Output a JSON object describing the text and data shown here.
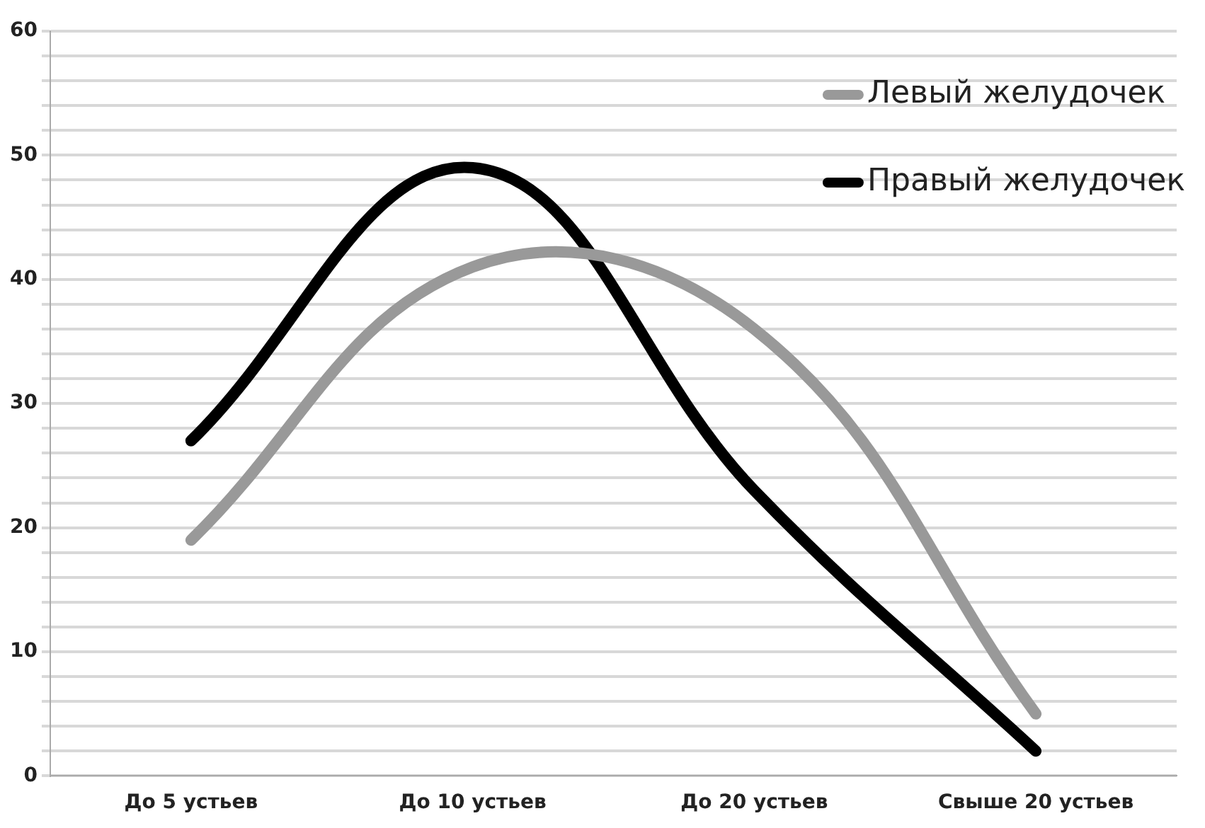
{
  "chart_data": {
    "type": "line",
    "categories": [
      "До 5 устьев",
      "До 10 устьев",
      "До 20 устьев",
      "Свыше 20 устьев"
    ],
    "series": [
      {
        "name": "Левый желудочек",
        "color": "#999999",
        "values": [
          19,
          41,
          36,
          5
        ]
      },
      {
        "name": "Правый желудочек",
        "color": "#000000",
        "values": [
          27,
          49,
          23,
          2
        ]
      }
    ],
    "ylim": [
      0,
      60
    ],
    "yticks": [
      0,
      {
        "value": 2,
        "label": null
      },
      {
        "value": 4,
        "label": null
      },
      {
        "value": 6,
        "label": null
      },
      {
        "value": 8,
        "label": null
      },
      10,
      {
        "value": 12,
        "label": null
      },
      {
        "value": 14,
        "label": null
      },
      {
        "value": 16,
        "label": null
      },
      {
        "value": 18,
        "label": null
      },
      20,
      {
        "value": 22,
        "label": null
      },
      {
        "value": 24,
        "label": null
      },
      {
        "value": 26,
        "label": null
      },
      {
        "value": 28,
        "label": null
      },
      30,
      {
        "value": 32,
        "label": null
      },
      {
        "value": 34,
        "label": null
      },
      {
        "value": 36,
        "label": null
      },
      {
        "value": 38,
        "label": null
      },
      40,
      {
        "value": 42,
        "label": null
      },
      {
        "value": 44,
        "label": null
      },
      {
        "value": 46,
        "label": null
      },
      {
        "value": 48,
        "label": null
      },
      50,
      {
        "value": 52,
        "label": null
      },
      {
        "value": 54,
        "label": null
      },
      {
        "value": 56,
        "label": null
      },
      {
        "value": 58,
        "label": null
      },
      60
    ],
    "grid": "y",
    "legend": "top right",
    "marker": "none",
    "line_style": "solid"
  }
}
